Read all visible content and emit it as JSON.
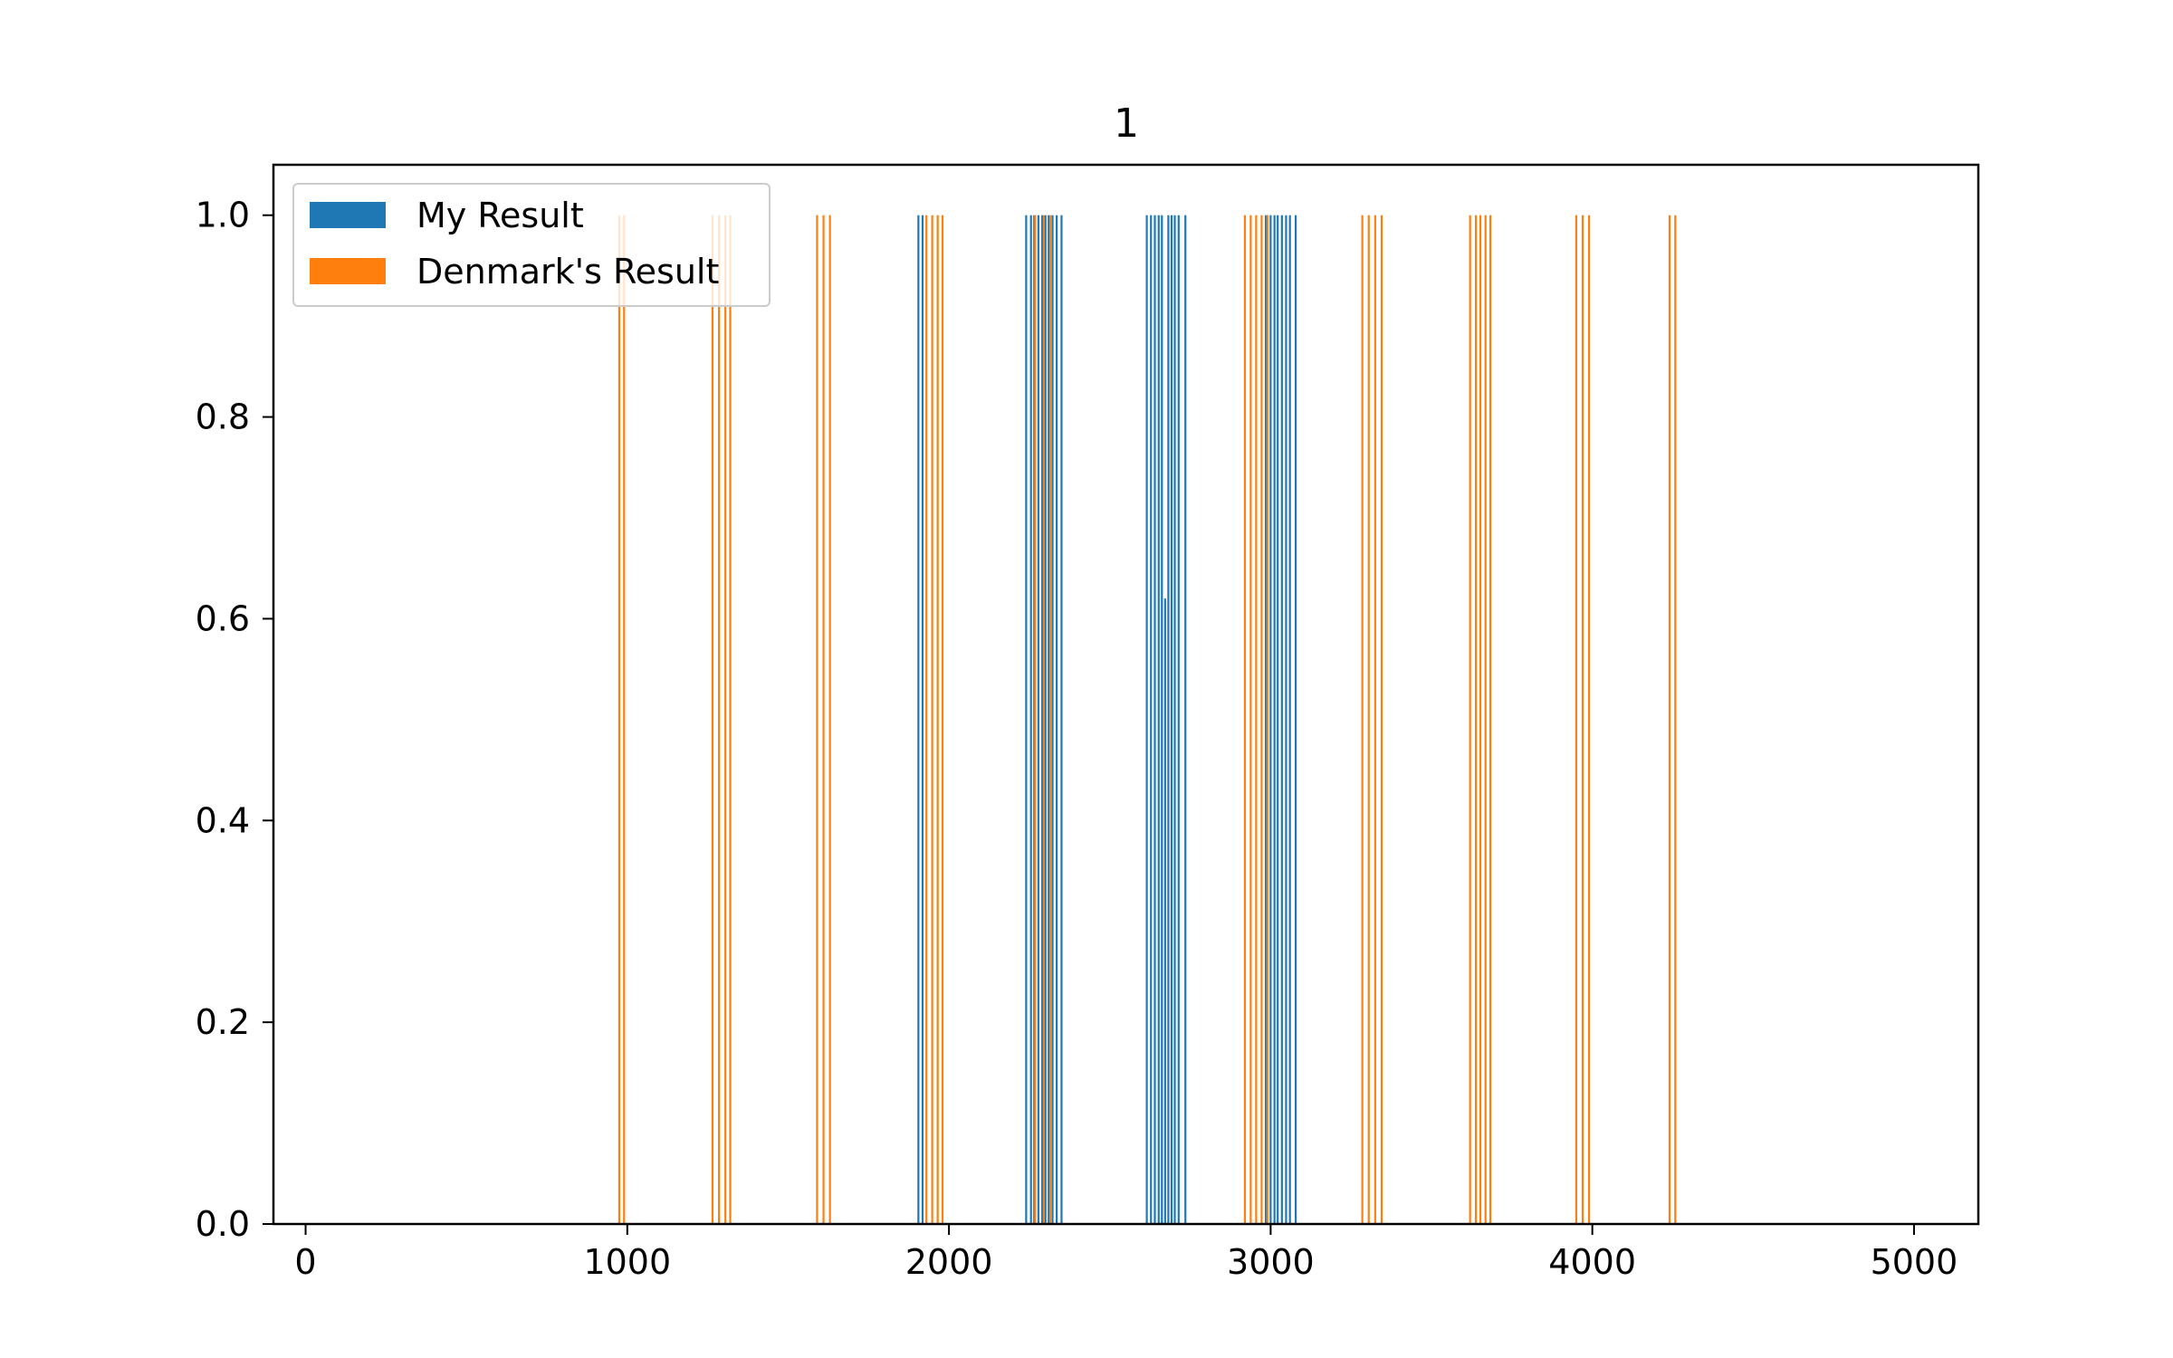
{
  "chart_data": {
    "type": "bar",
    "title": "1",
    "xlabel": "",
    "ylabel": "",
    "xlim": [
      -100,
      5200
    ],
    "ylim": [
      0,
      1.05
    ],
    "x_ticks": [
      0,
      1000,
      2000,
      3000,
      4000,
      5000
    ],
    "y_ticks": [
      0.0,
      0.2,
      0.4,
      0.6,
      0.8,
      1.0
    ],
    "grid": false,
    "legend_position": "top-left",
    "series": [
      {
        "name": "My Result",
        "color": "#1f77b4",
        "bars": [
          {
            "x": 1905,
            "y": 1.0
          },
          {
            "x": 1918,
            "y": 1.0
          },
          {
            "x": 2240,
            "y": 1.0
          },
          {
            "x": 2255,
            "y": 1.0
          },
          {
            "x": 2265,
            "y": 1.0
          },
          {
            "x": 2278,
            "y": 1.0
          },
          {
            "x": 2290,
            "y": 1.0
          },
          {
            "x": 2300,
            "y": 1.0
          },
          {
            "x": 2310,
            "y": 1.0
          },
          {
            "x": 2322,
            "y": 1.0
          },
          {
            "x": 2335,
            "y": 1.0
          },
          {
            "x": 2350,
            "y": 1.0
          },
          {
            "x": 2615,
            "y": 1.0
          },
          {
            "x": 2628,
            "y": 1.0
          },
          {
            "x": 2640,
            "y": 1.0
          },
          {
            "x": 2652,
            "y": 1.0
          },
          {
            "x": 2662,
            "y": 1.0
          },
          {
            "x": 2672,
            "y": 0.62
          },
          {
            "x": 2682,
            "y": 1.0
          },
          {
            "x": 2692,
            "y": 1.0
          },
          {
            "x": 2702,
            "y": 1.0
          },
          {
            "x": 2714,
            "y": 1.0
          },
          {
            "x": 2735,
            "y": 1.0
          },
          {
            "x": 2985,
            "y": 1.0
          },
          {
            "x": 3000,
            "y": 1.0
          },
          {
            "x": 3012,
            "y": 1.0
          },
          {
            "x": 3022,
            "y": 1.0
          },
          {
            "x": 3035,
            "y": 1.0
          },
          {
            "x": 3048,
            "y": 1.0
          },
          {
            "x": 3060,
            "y": 1.0
          },
          {
            "x": 3078,
            "y": 1.0
          }
        ]
      },
      {
        "name": "Denmark's Result",
        "color": "#ff7f0e",
        "bars": [
          {
            "x": 975,
            "y": 1.0
          },
          {
            "x": 990,
            "y": 1.0
          },
          {
            "x": 1265,
            "y": 1.0
          },
          {
            "x": 1285,
            "y": 1.0
          },
          {
            "x": 1305,
            "y": 1.0
          },
          {
            "x": 1320,
            "y": 1.0
          },
          {
            "x": 1590,
            "y": 1.0
          },
          {
            "x": 1610,
            "y": 1.0
          },
          {
            "x": 1630,
            "y": 1.0
          },
          {
            "x": 1930,
            "y": 1.0
          },
          {
            "x": 1948,
            "y": 1.0
          },
          {
            "x": 1965,
            "y": 1.0
          },
          {
            "x": 1980,
            "y": 1.0
          },
          {
            "x": 2268,
            "y": 1.0
          },
          {
            "x": 2295,
            "y": 1.0
          },
          {
            "x": 2315,
            "y": 1.0
          },
          {
            "x": 2920,
            "y": 1.0
          },
          {
            "x": 2938,
            "y": 1.0
          },
          {
            "x": 2955,
            "y": 1.0
          },
          {
            "x": 2972,
            "y": 1.0
          },
          {
            "x": 2990,
            "y": 1.0
          },
          {
            "x": 3285,
            "y": 1.0
          },
          {
            "x": 3305,
            "y": 1.0
          },
          {
            "x": 3325,
            "y": 1.0
          },
          {
            "x": 3345,
            "y": 1.0
          },
          {
            "x": 3620,
            "y": 1.0
          },
          {
            "x": 3638,
            "y": 1.0
          },
          {
            "x": 3652,
            "y": 1.0
          },
          {
            "x": 3668,
            "y": 1.0
          },
          {
            "x": 3683,
            "y": 1.0
          },
          {
            "x": 3950,
            "y": 1.0
          },
          {
            "x": 3970,
            "y": 1.0
          },
          {
            "x": 3990,
            "y": 1.0
          },
          {
            "x": 4240,
            "y": 1.0
          },
          {
            "x": 4258,
            "y": 1.0
          }
        ]
      }
    ]
  }
}
